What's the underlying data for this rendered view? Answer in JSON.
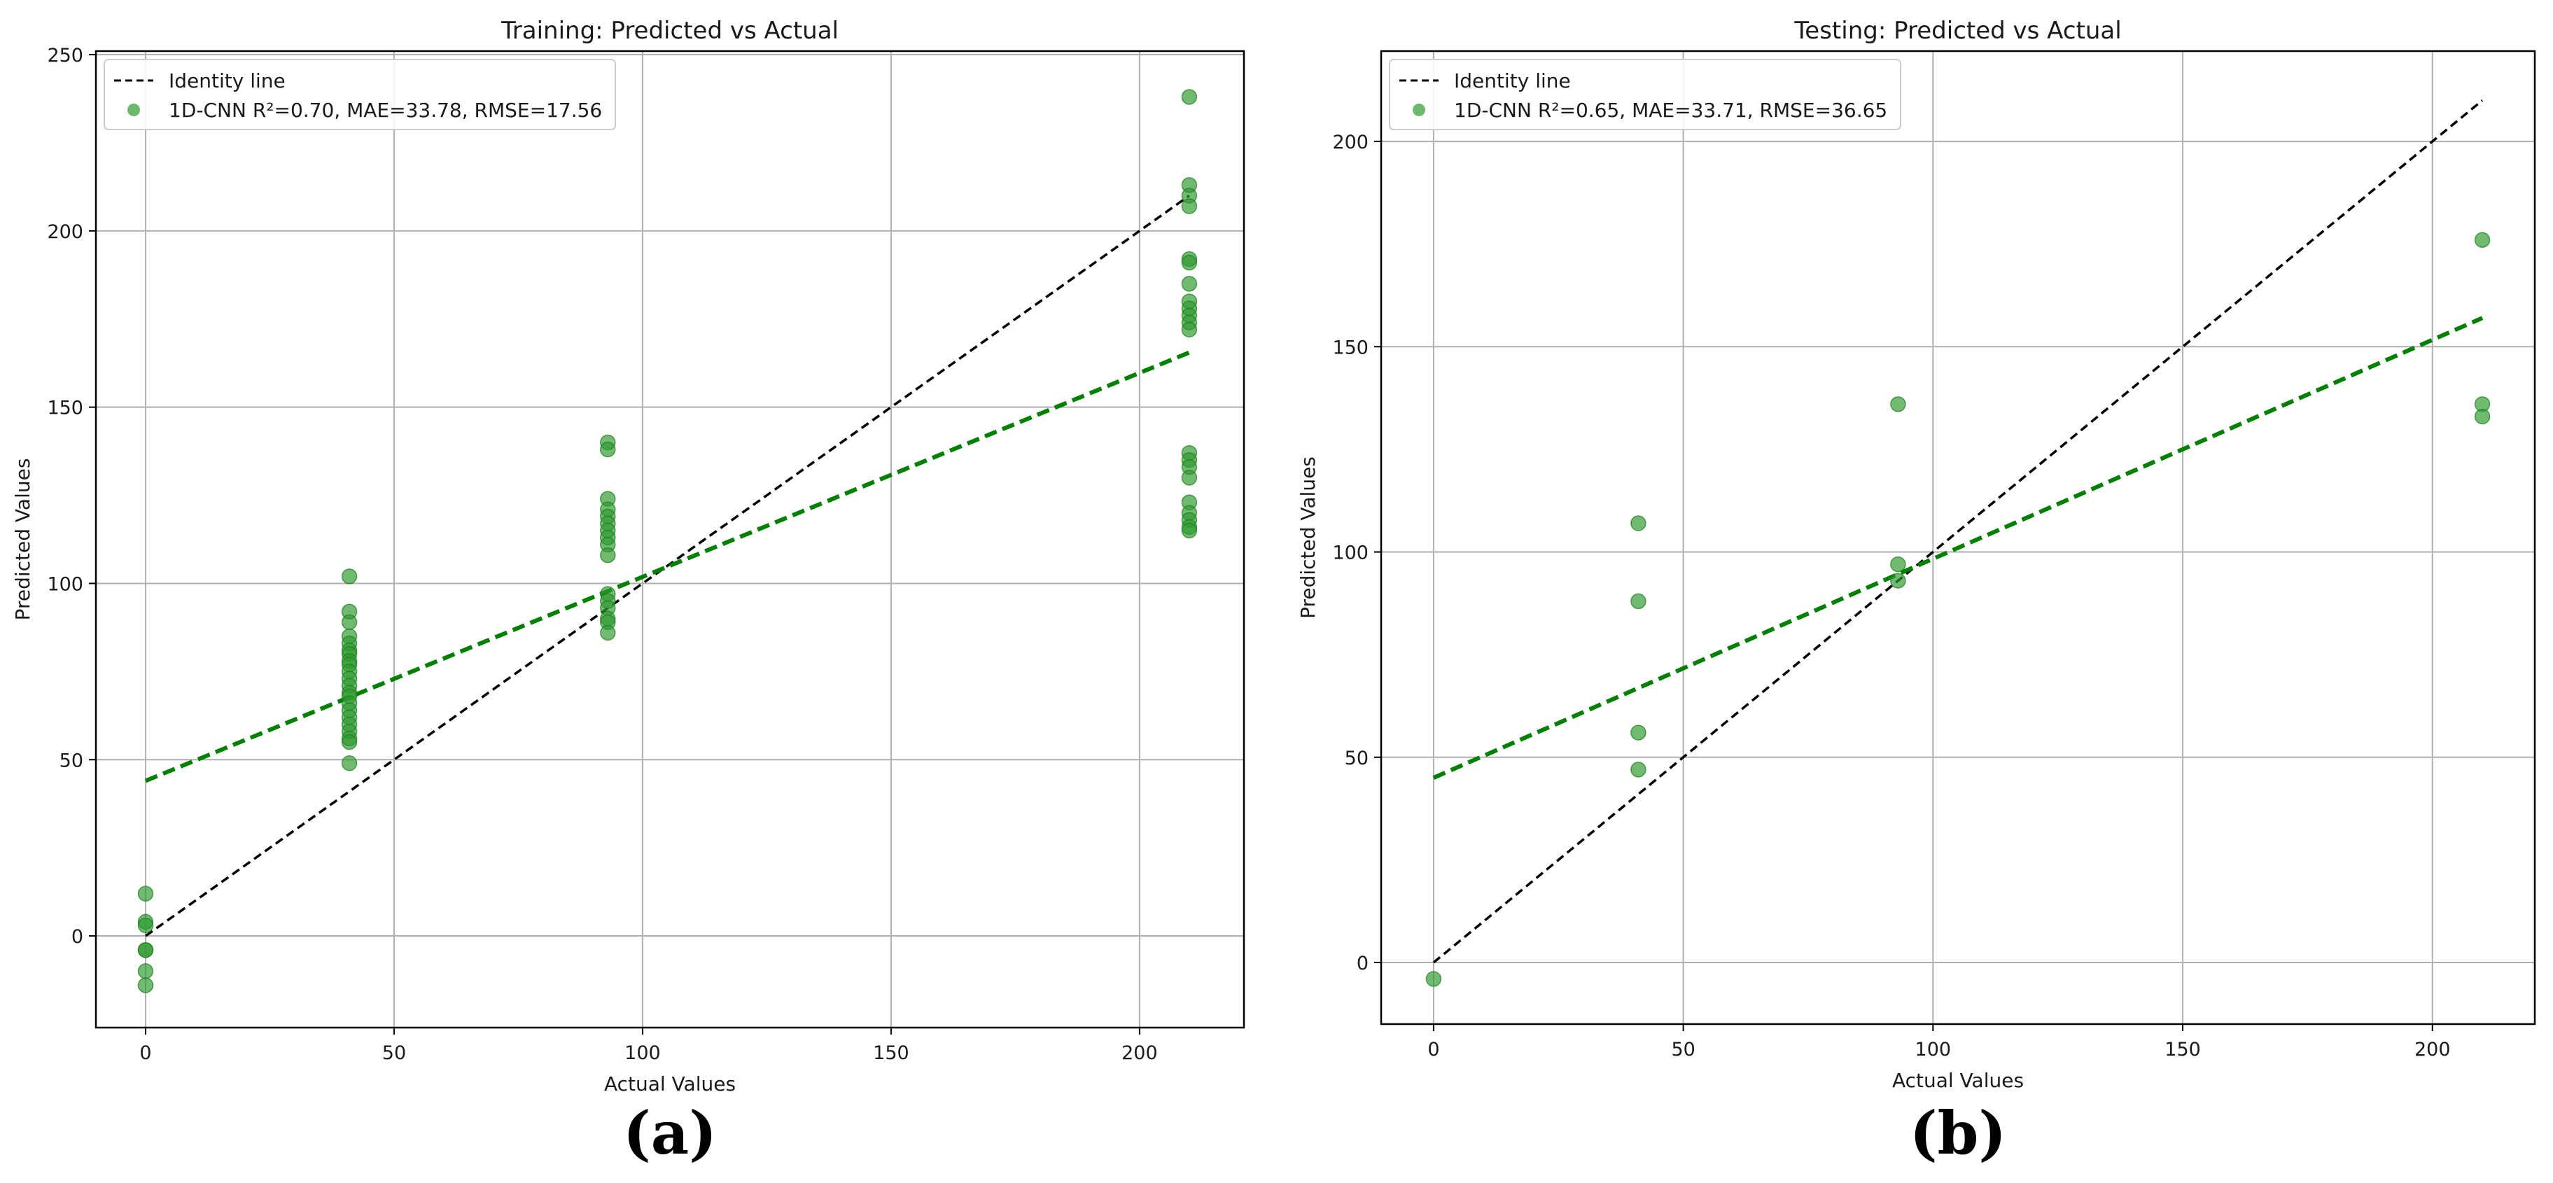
{
  "chart_data": [
    {
      "type": "scatter",
      "panel_label": "(a)",
      "title": "Training: Predicted vs Actual",
      "xlabel": "Actual Values",
      "ylabel": "Predicted Values",
      "xlim": [
        -10,
        221
      ],
      "ylim": [
        -26,
        251
      ],
      "xticks": [
        0,
        50,
        100,
        150,
        200
      ],
      "yticks": [
        0,
        50,
        100,
        150,
        200,
        250
      ],
      "grid": true,
      "legend_position": "top-left",
      "identity_line": {
        "name": "Identity line",
        "color": "#000000",
        "x": [
          0,
          210
        ],
        "y": [
          0,
          210
        ]
      },
      "fit_line": {
        "color": "#008000",
        "x": [
          0,
          210
        ],
        "y": [
          44,
          165.5
        ]
      },
      "series": [
        {
          "name": "1D-CNN R²=0.70, MAE=33.78, RMSE=17.56",
          "color": "#2e9a2e",
          "points": [
            [
              0,
              12
            ],
            [
              0,
              4
            ],
            [
              0,
              3
            ],
            [
              0,
              -4
            ],
            [
              0,
              -4
            ],
            [
              0,
              -10
            ],
            [
              0,
              -14
            ],
            [
              41,
              102
            ],
            [
              41,
              92
            ],
            [
              41,
              89
            ],
            [
              41,
              85
            ],
            [
              41,
              83
            ],
            [
              41,
              81
            ],
            [
              41,
              80
            ],
            [
              41,
              78
            ],
            [
              41,
              77
            ],
            [
              41,
              75
            ],
            [
              41,
              73
            ],
            [
              41,
              71
            ],
            [
              41,
              69
            ],
            [
              41,
              68
            ],
            [
              41,
              66
            ],
            [
              41,
              64
            ],
            [
              41,
              62
            ],
            [
              41,
              60
            ],
            [
              41,
              58
            ],
            [
              41,
              56
            ],
            [
              41,
              55
            ],
            [
              41,
              49
            ],
            [
              93,
              140
            ],
            [
              93,
              138
            ],
            [
              93,
              124
            ],
            [
              93,
              121
            ],
            [
              93,
              119
            ],
            [
              93,
              117
            ],
            [
              93,
              115
            ],
            [
              93,
              113
            ],
            [
              93,
              111
            ],
            [
              93,
              108
            ],
            [
              93,
              97
            ],
            [
              93,
              95
            ],
            [
              93,
              93
            ],
            [
              93,
              90
            ],
            [
              93,
              89
            ],
            [
              93,
              86
            ],
            [
              210,
              238
            ],
            [
              210,
              213
            ],
            [
              210,
              210
            ],
            [
              210,
              207
            ],
            [
              210,
              192
            ],
            [
              210,
              191
            ],
            [
              210,
              185
            ],
            [
              210,
              180
            ],
            [
              210,
              178
            ],
            [
              210,
              176
            ],
            [
              210,
              174
            ],
            [
              210,
              172
            ],
            [
              210,
              137
            ],
            [
              210,
              135
            ],
            [
              210,
              133
            ],
            [
              210,
              130
            ],
            [
              210,
              123
            ],
            [
              210,
              120
            ],
            [
              210,
              118
            ],
            [
              210,
              116
            ],
            [
              210,
              115
            ]
          ]
        }
      ]
    },
    {
      "type": "scatter",
      "panel_label": "(b)",
      "title": "Testing: Predicted vs Actual",
      "xlabel": "Actual Values",
      "ylabel": "Predicted Values",
      "xlim": [
        -10.5,
        220.5
      ],
      "ylim": [
        -15,
        222
      ],
      "xticks": [
        0,
        50,
        100,
        150,
        200
      ],
      "yticks": [
        0,
        50,
        100,
        150,
        200
      ],
      "grid": true,
      "legend_position": "top-left",
      "identity_line": {
        "name": "Identity line",
        "color": "#000000",
        "x": [
          0,
          210
        ],
        "y": [
          0,
          210
        ]
      },
      "fit_line": {
        "color": "#008000",
        "x": [
          0,
          210
        ],
        "y": [
          45,
          157
        ]
      },
      "series": [
        {
          "name": "1D-CNN R²=0.65, MAE=33.71, RMSE=36.65",
          "color": "#2e9a2e",
          "points": [
            [
              0,
              -4
            ],
            [
              41,
              107
            ],
            [
              41,
              88
            ],
            [
              41,
              56
            ],
            [
              41,
              47
            ],
            [
              93,
              136
            ],
            [
              93,
              97
            ],
            [
              93,
              93
            ],
            [
              210,
              176
            ],
            [
              210,
              136
            ],
            [
              210,
              133
            ]
          ]
        }
      ]
    }
  ]
}
